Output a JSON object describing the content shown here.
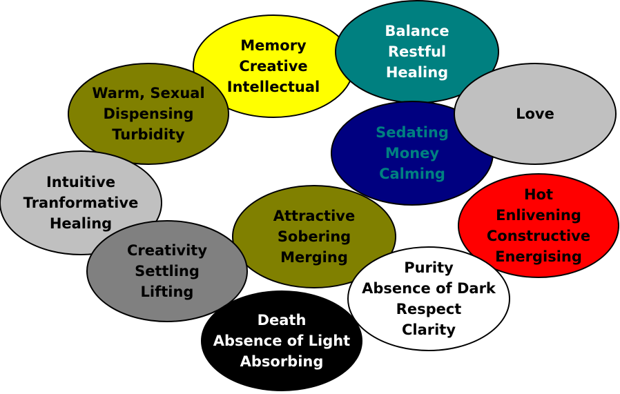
{
  "diagram": {
    "ellipses": [
      {
        "id": "memory",
        "lines": [
          "Memory",
          "Creative",
          "Intellectual"
        ],
        "fill": "#ffff00",
        "text_color": "#000000"
      },
      {
        "id": "balance",
        "lines": [
          "Balance",
          "Restful",
          "Healing"
        ],
        "fill": "#008080",
        "text_color": "#ffffff"
      },
      {
        "id": "warm",
        "lines": [
          "Warm, Sexual",
          "Dispensing",
          "Turbidity"
        ],
        "fill": "#808000",
        "text_color": "#000000"
      },
      {
        "id": "sedating",
        "lines": [
          "Sedating",
          "Money",
          "Calming"
        ],
        "fill": "#000080",
        "text_color": "#008080"
      },
      {
        "id": "love",
        "lines": [
          "Love"
        ],
        "fill": "#c0c0c0",
        "text_color": "#000000"
      },
      {
        "id": "intuitive",
        "lines": [
          "Intuitive",
          "Tranformative",
          "Healing"
        ],
        "fill": "#c0c0c0",
        "text_color": "#000000"
      },
      {
        "id": "hot",
        "lines": [
          "Hot",
          "Enlivening",
          "Constructive",
          "Energising"
        ],
        "fill": "#ff0000",
        "text_color": "#000000"
      },
      {
        "id": "attractive",
        "lines": [
          "Attractive",
          "Sobering",
          "Merging"
        ],
        "fill": "#808000",
        "text_color": "#000000"
      },
      {
        "id": "creativity",
        "lines": [
          "Creativity",
          "Settling",
          "Lifting"
        ],
        "fill": "#808080",
        "text_color": "#000000"
      },
      {
        "id": "purity",
        "lines": [
          "Purity",
          "Absence of Dark",
          "Respect",
          "Clarity"
        ],
        "fill": "#ffffff",
        "text_color": "#000000"
      },
      {
        "id": "death",
        "lines": [
          "Death",
          "Absence of Light",
          "Absorbing"
        ],
        "fill": "#000000",
        "text_color": "#ffffff"
      }
    ]
  }
}
